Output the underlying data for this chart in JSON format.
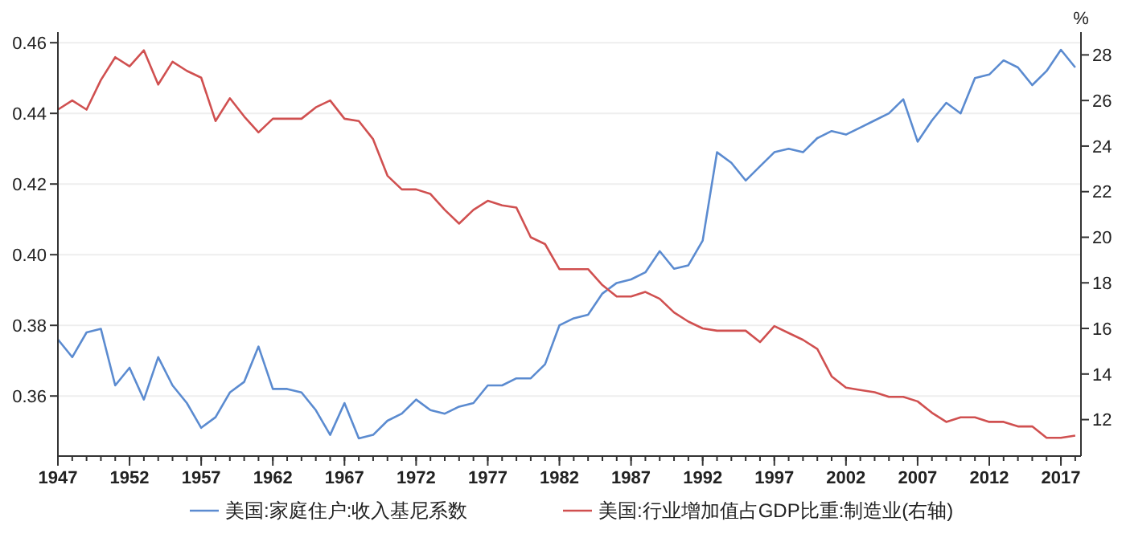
{
  "chart_data": {
    "type": "line",
    "y2label": "%",
    "legend": "bottom",
    "grid": "y",
    "x": [
      1947,
      1948,
      1949,
      1950,
      1951,
      1952,
      1953,
      1954,
      1955,
      1956,
      1957,
      1958,
      1959,
      1960,
      1961,
      1962,
      1963,
      1964,
      1965,
      1966,
      1967,
      1968,
      1969,
      1970,
      1971,
      1972,
      1973,
      1974,
      1975,
      1976,
      1977,
      1978,
      1979,
      1980,
      1981,
      1982,
      1983,
      1984,
      1985,
      1986,
      1987,
      1988,
      1989,
      1990,
      1991,
      1992,
      1993,
      1994,
      1995,
      1996,
      1997,
      1998,
      1999,
      2000,
      2001,
      2002,
      2003,
      2004,
      2005,
      2006,
      2007,
      2008,
      2009,
      2010,
      2011,
      2012,
      2013,
      2014,
      2015,
      2016,
      2017,
      2018
    ],
    "xlim": [
      1947,
      2018.4
    ],
    "xticks": [
      1947,
      1952,
      1957,
      1962,
      1967,
      1972,
      1977,
      1982,
      1987,
      1992,
      1997,
      2002,
      2007,
      2012,
      2017
    ],
    "ylim": [
      0.343,
      0.463
    ],
    "yticks": [
      {
        "value": 0.36,
        "label": "0.36"
      },
      {
        "value": 0.38,
        "label": "0.38"
      },
      {
        "value": 0.4,
        "label": "0.40"
      },
      {
        "value": 0.42,
        "label": "0.42"
      },
      {
        "value": 0.44,
        "label": "0.44"
      },
      {
        "value": 0.46,
        "label": "0.46"
      }
    ],
    "y2lim": [
      10.4,
      29
    ],
    "y2ticks": [
      12,
      14,
      16,
      18,
      20,
      22,
      24,
      26,
      28
    ],
    "series": [
      {
        "name": "美国:家庭住户:收入基尼系数",
        "color": "#5b8bd0",
        "values": [
          0.376,
          0.371,
          0.378,
          0.379,
          0.363,
          0.368,
          0.359,
          0.371,
          0.363,
          0.358,
          0.351,
          0.354,
          0.361,
          0.364,
          0.374,
          0.362,
          0.362,
          0.361,
          0.356,
          0.349,
          0.358,
          0.348,
          0.349,
          0.353,
          0.355,
          0.359,
          0.356,
          0.355,
          0.357,
          0.358,
          0.363,
          0.363,
          0.365,
          0.365,
          0.369,
          0.38,
          0.382,
          0.383,
          0.389,
          0.392,
          0.393,
          0.395,
          0.401,
          0.396,
          0.397,
          0.404,
          0.429,
          0.426,
          0.421,
          0.425,
          0.429,
          0.43,
          0.429,
          0.433,
          0.435,
          0.434,
          0.436,
          0.438,
          0.44,
          0.444,
          0.432,
          0.438,
          0.443,
          0.44,
          0.45,
          0.451,
          0.455,
          0.453,
          0.448,
          0.452,
          0.458,
          0.453
        ]
      },
      {
        "name": "美国:行业增加值占GDP比重:制造业(右轴)",
        "color": "#d05050",
        "axis": "y2",
        "values": [
          25.6,
          26.0,
          25.6,
          26.9,
          27.9,
          27.5,
          28.2,
          26.7,
          27.7,
          27.3,
          27.0,
          25.1,
          26.1,
          25.3,
          24.6,
          25.2,
          25.2,
          25.2,
          25.7,
          26.0,
          25.2,
          25.1,
          24.3,
          22.7,
          22.1,
          22.1,
          21.9,
          21.2,
          20.6,
          21.2,
          21.6,
          21.4,
          21.3,
          20.0,
          19.7,
          18.6,
          18.6,
          18.6,
          17.9,
          17.4,
          17.4,
          17.6,
          17.3,
          16.7,
          16.3,
          16.0,
          15.9,
          15.9,
          15.9,
          15.4,
          16.1,
          15.8,
          15.5,
          15.1,
          13.9,
          13.4,
          13.3,
          13.2,
          13.0,
          13.0,
          12.8,
          12.3,
          11.9,
          12.1,
          12.1,
          11.9,
          11.9,
          11.7,
          11.7,
          11.2,
          11.2,
          11.3
        ]
      }
    ]
  }
}
